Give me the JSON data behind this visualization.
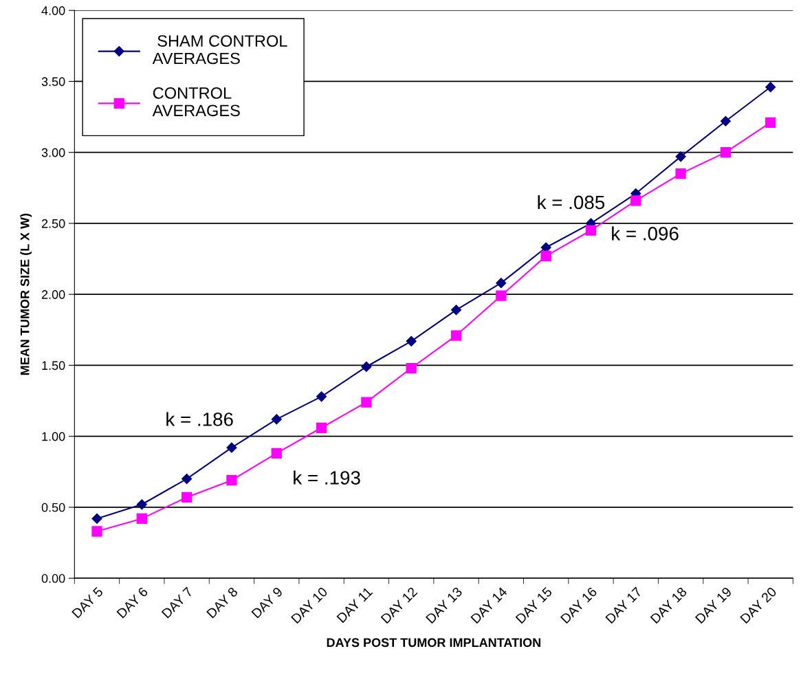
{
  "chart_data": {
    "type": "line",
    "xlabel": "DAYS POST TUMOR IMPLANTATION",
    "ylabel": "MEAN TUMOR SIZE (L X W)",
    "categories": [
      "DAY 5",
      "DAY 6",
      "DAY 7",
      "DAY 8",
      "DAY 9",
      "DAY 10",
      "DAY 11",
      "DAY 12",
      "DAY 13",
      "DAY 14",
      "DAY 15",
      "DAY 16",
      "DAY 17",
      "DAY 18",
      "DAY 19",
      "DAY 20"
    ],
    "series": [
      {
        "name": " SHAM CONTROL\nAVERAGES",
        "color": "#000080",
        "marker": "diamond",
        "values": [
          0.42,
          0.52,
          0.7,
          0.92,
          1.12,
          1.28,
          1.49,
          1.67,
          1.89,
          2.08,
          2.33,
          2.5,
          2.71,
          2.97,
          3.22,
          3.46
        ]
      },
      {
        "name": "CONTROL\nAVERAGES",
        "color": "#ff00ff",
        "marker": "square",
        "values": [
          0.33,
          0.42,
          0.57,
          0.69,
          0.88,
          1.06,
          1.24,
          1.48,
          1.71,
          1.99,
          2.27,
          2.45,
          2.66,
          2.85,
          3.0,
          3.21
        ]
      }
    ],
    "ylim": [
      0,
      4
    ],
    "yticks": [
      {
        "value": 0,
        "label": "0.00"
      },
      {
        "value": 0.5,
        "label": "0.50"
      },
      {
        "value": 1,
        "label": "1.00"
      },
      {
        "value": 1.5,
        "label": "1.50"
      },
      {
        "value": 2,
        "label": "2.00"
      },
      {
        "value": 2.5,
        "label": "2.50"
      },
      {
        "value": 3,
        "label": "3.00"
      },
      {
        "value": 3.5,
        "label": "3.50"
      },
      {
        "value": 4,
        "label": "4.00"
      }
    ],
    "grid": "y",
    "legend": "top left",
    "line_style": "solid",
    "annotations": [
      "k = .186",
      "k = .193",
      "k = .085",
      "k = .096"
    ]
  }
}
